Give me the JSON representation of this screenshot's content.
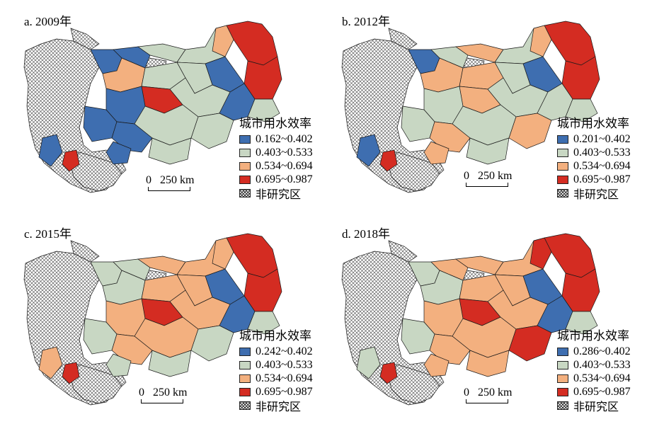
{
  "colors": {
    "blue": "#3e6eb0",
    "green": "#c8d7c3",
    "orange": "#f3b07f",
    "red": "#d42c22",
    "hatch": "#ffffff",
    "border": "#1a1a1a"
  },
  "legend_title": "城市用水效率",
  "scale_label_zero": "0",
  "scale_label_dist": "250 km",
  "non_study_label": "非研究区",
  "panels": [
    {
      "title": "a. 2009年",
      "legend": [
        "0.162~0.402",
        "0.403~0.533",
        "0.534~0.694",
        "0.695~0.987"
      ]
    },
    {
      "title": "b. 2012年",
      "legend": [
        "0.201~0.402",
        "0.403~0.533",
        "0.534~0.694",
        "0.695~0.987"
      ]
    },
    {
      "title": "c. 2015年",
      "legend": [
        "0.242~0.402",
        "0.403~0.533",
        "0.534~0.694",
        "0.695~0.987"
      ]
    },
    {
      "title": "d. 2018年",
      "legend": [
        "0.286~0.402",
        "0.403~0.533",
        "0.534~0.694",
        "0.695~0.987"
      ]
    }
  ]
}
